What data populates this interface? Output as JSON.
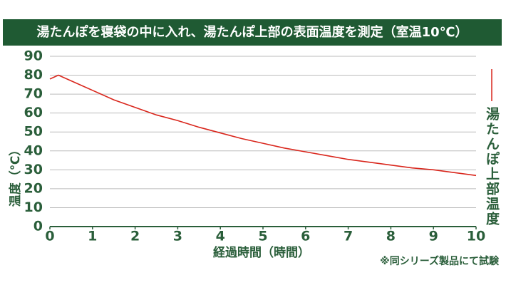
{
  "chart_data": {
    "type": "line",
    "title": "湯たんぽを寝袋の中に入れ、湯たんぽ上部の表面温度を測定（室温10℃）",
    "xlabel": "経過時間（時間）",
    "ylabel": "温度（℃）",
    "note": "※同シリーズ製品にて試験",
    "x": [
      0,
      0.2,
      0.5,
      1,
      1.5,
      2,
      2.5,
      3,
      3.5,
      4,
      4.5,
      5,
      5.5,
      6,
      6.5,
      7,
      7.5,
      8,
      8.5,
      9,
      9.5,
      10
    ],
    "series": [
      {
        "name": "湯たんぽ上部温度",
        "color": "#d9261c",
        "values": [
          78,
          80,
          77,
          72,
          67,
          63,
          59,
          56,
          52.5,
          49.5,
          46.5,
          44,
          41.5,
          39.5,
          37.5,
          35.5,
          34,
          32.5,
          31,
          30,
          28.5,
          27
        ]
      }
    ],
    "xlim": [
      0,
      10
    ],
    "xticks": [
      0,
      1,
      2,
      3,
      4,
      5,
      6,
      7,
      8,
      9,
      10
    ],
    "ylim": [
      0,
      90
    ],
    "yticks": [
      0,
      10,
      20,
      30,
      40,
      50,
      60,
      70,
      80,
      90
    ],
    "grid": true
  }
}
